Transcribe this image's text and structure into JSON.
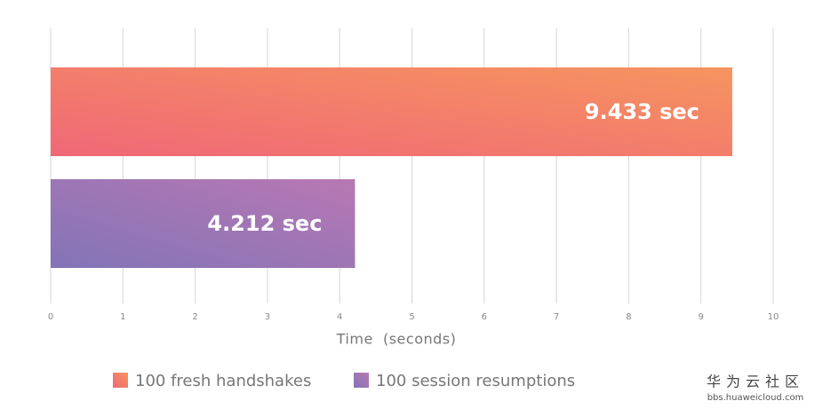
{
  "chart_data": {
    "type": "hbar",
    "xlabel": "Time  (seconds)",
    "xlim": [
      0,
      10
    ],
    "xticks": [
      0,
      1,
      2,
      3,
      4,
      5,
      6,
      7,
      8,
      9,
      10
    ],
    "grid": true,
    "series": [
      {
        "name": "100 fresh handshakes",
        "color": [
          "#f06877",
          "#f6945f"
        ],
        "values": [
          9.433
        ],
        "value_labels": [
          "9.433 sec"
        ]
      },
      {
        "name": "100 session resumptions",
        "color": [
          "#8274b7",
          "#b878b3"
        ],
        "values": [
          4.212
        ],
        "value_labels": [
          "4.212 sec"
        ]
      }
    ]
  },
  "watermark": {
    "title": "华为云社区",
    "url": "bbs.huaweicloud.com"
  }
}
